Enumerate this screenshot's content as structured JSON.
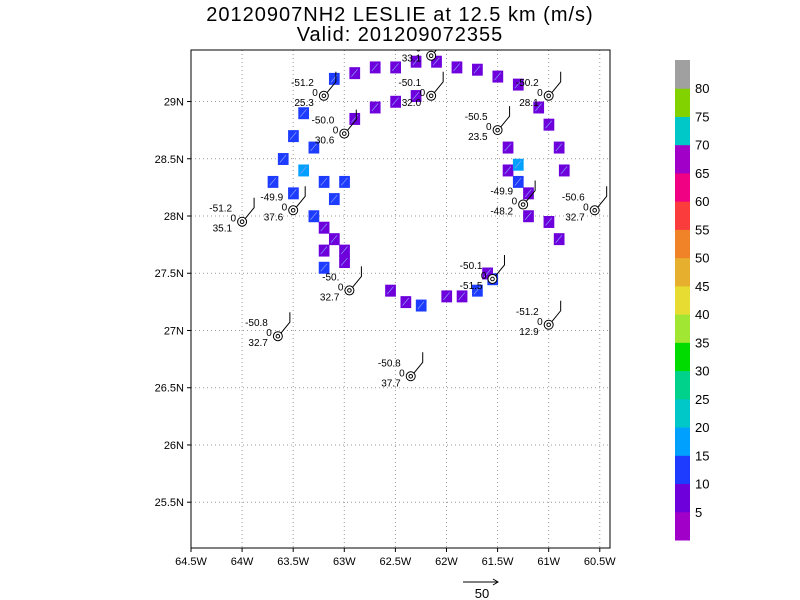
{
  "title_line1": "20120907NH2 LESLIE at 12.5 km (m/s)",
  "title_line2": "Valid: 201209072355",
  "chart_data": {
    "type": "heatmap",
    "xlim": [
      -64.5,
      -60.4
    ],
    "ylim": [
      25.1,
      29.45
    ],
    "x_ticks": [
      {
        "v": -64.5,
        "label": "64.5W"
      },
      {
        "v": -64.0,
        "label": "64W"
      },
      {
        "v": -63.5,
        "label": "63.5W"
      },
      {
        "v": -63.0,
        "label": "63W"
      },
      {
        "v": -62.5,
        "label": "62.5W"
      },
      {
        "v": -62.0,
        "label": "62W"
      },
      {
        "v": -61.5,
        "label": "61.5W"
      },
      {
        "v": -61.0,
        "label": "61W"
      },
      {
        "v": -60.5,
        "label": "60.5W"
      }
    ],
    "y_ticks": [
      {
        "v": 25.5,
        "label": "25.5N"
      },
      {
        "v": 26.0,
        "label": "26N"
      },
      {
        "v": 26.5,
        "label": "26.5N"
      },
      {
        "v": 27.0,
        "label": "27N"
      },
      {
        "v": 27.5,
        "label": "27.5N"
      },
      {
        "v": 28.0,
        "label": "28N"
      },
      {
        "v": 28.5,
        "label": "28.5N"
      },
      {
        "v": 29.0,
        "label": "29N"
      }
    ],
    "grid": true,
    "colorbar": {
      "labels": [
        "5",
        "10",
        "15",
        "20",
        "25",
        "30",
        "35",
        "40",
        "45",
        "50",
        "55",
        "60",
        "65",
        "70",
        "75",
        "80"
      ],
      "colors": [
        "#a000c8",
        "#6e00dc",
        "#1e3cff",
        "#00a0ff",
        "#00c8c8",
        "#00d28c",
        "#00dc00",
        "#a0e632",
        "#e6dc32",
        "#e6af2d",
        "#f08228",
        "#fa3c3c",
        "#f00082",
        "#a000c8",
        "#00c8c8",
        "#82d200",
        "#a0a0a0"
      ]
    },
    "wind_speed_cells": [
      {
        "lon": -62.3,
        "lat": 29.35,
        "v": 8
      },
      {
        "lon": -62.1,
        "lat": 29.35,
        "v": 7
      },
      {
        "lon": -62.5,
        "lat": 29.3,
        "v": 9
      },
      {
        "lon": -62.7,
        "lat": 29.3,
        "v": 8
      },
      {
        "lon": -62.9,
        "lat": 29.25,
        "v": 7
      },
      {
        "lon": -63.1,
        "lat": 29.2,
        "v": 10
      },
      {
        "lon": -61.9,
        "lat": 29.3,
        "v": 8
      },
      {
        "lon": -61.7,
        "lat": 29.28,
        "v": 7
      },
      {
        "lon": -61.5,
        "lat": 29.22,
        "v": 8
      },
      {
        "lon": -61.3,
        "lat": 29.15,
        "v": 7
      },
      {
        "lon": -62.5,
        "lat": 29.0,
        "v": 8
      },
      {
        "lon": -62.3,
        "lat": 29.05,
        "v": 9
      },
      {
        "lon": -62.7,
        "lat": 28.95,
        "v": 7
      },
      {
        "lon": -62.9,
        "lat": 28.85,
        "v": 8
      },
      {
        "lon": -63.4,
        "lat": 28.9,
        "v": 12
      },
      {
        "lon": -63.5,
        "lat": 28.7,
        "v": 14
      },
      {
        "lon": -63.3,
        "lat": 28.6,
        "v": 13
      },
      {
        "lon": -63.6,
        "lat": 28.5,
        "v": 12
      },
      {
        "lon": -63.4,
        "lat": 28.4,
        "v": 16
      },
      {
        "lon": -63.2,
        "lat": 28.3,
        "v": 14
      },
      {
        "lon": -63.0,
        "lat": 28.3,
        "v": 13
      },
      {
        "lon": -63.7,
        "lat": 28.3,
        "v": 12
      },
      {
        "lon": -63.5,
        "lat": 28.2,
        "v": 13
      },
      {
        "lon": -63.1,
        "lat": 28.15,
        "v": 12
      },
      {
        "lon": -63.3,
        "lat": 28.0,
        "v": 10
      },
      {
        "lon": -63.2,
        "lat": 27.9,
        "v": 9
      },
      {
        "lon": -63.1,
        "lat": 27.8,
        "v": 8
      },
      {
        "lon": -63.2,
        "lat": 27.7,
        "v": 9
      },
      {
        "lon": -63.0,
        "lat": 27.7,
        "v": 7
      },
      {
        "lon": -63.2,
        "lat": 27.55,
        "v": 12
      },
      {
        "lon": -63.0,
        "lat": 27.6,
        "v": 8
      },
      {
        "lon": -61.1,
        "lat": 28.95,
        "v": 7
      },
      {
        "lon": -61.0,
        "lat": 28.8,
        "v": 8
      },
      {
        "lon": -60.9,
        "lat": 28.6,
        "v": 7
      },
      {
        "lon": -60.85,
        "lat": 28.4,
        "v": 8
      },
      {
        "lon": -61.4,
        "lat": 28.6,
        "v": 7
      },
      {
        "lon": -61.4,
        "lat": 28.4,
        "v": 8
      },
      {
        "lon": -61.3,
        "lat": 28.45,
        "v": 16
      },
      {
        "lon": -61.3,
        "lat": 28.3,
        "v": 14
      },
      {
        "lon": -61.2,
        "lat": 28.2,
        "v": 9
      },
      {
        "lon": -61.2,
        "lat": 28.0,
        "v": 8
      },
      {
        "lon": -61.0,
        "lat": 27.95,
        "v": 7
      },
      {
        "lon": -60.9,
        "lat": 27.8,
        "v": 8
      },
      {
        "lon": -62.55,
        "lat": 27.35,
        "v": 8
      },
      {
        "lon": -62.4,
        "lat": 27.25,
        "v": 9
      },
      {
        "lon": -62.25,
        "lat": 27.22,
        "v": 10
      },
      {
        "lon": -62.0,
        "lat": 27.3,
        "v": 8
      },
      {
        "lon": -61.85,
        "lat": 27.3,
        "v": 9
      },
      {
        "lon": -61.7,
        "lat": 27.35,
        "v": 12
      },
      {
        "lon": -61.55,
        "lat": 27.45,
        "v": 13
      },
      {
        "lon": -61.6,
        "lat": 27.5,
        "v": 7
      }
    ],
    "dropsondes": [
      {
        "lon": -62.15,
        "lat": 29.4,
        "labels": [
          "0",
          "33.1"
        ]
      },
      {
        "lon": -63.2,
        "lat": 29.05,
        "labels": [
          "-51.2",
          "0",
          "25.3"
        ]
      },
      {
        "lon": -62.15,
        "lat": 29.05,
        "labels": [
          "-50.1",
          "0",
          "32.0"
        ]
      },
      {
        "lon": -61.0,
        "lat": 29.05,
        "labels": [
          "-50.2",
          "0",
          "28.1"
        ]
      },
      {
        "lon": -63.0,
        "lat": 28.72,
        "labels": [
          "-50.0",
          "0",
          "30.6"
        ]
      },
      {
        "lon": -61.5,
        "lat": 28.75,
        "labels": [
          "-50.5",
          "0",
          "23.5"
        ]
      },
      {
        "lon": -64.0,
        "lat": 27.95,
        "labels": [
          "-51.2",
          "0",
          "35.1"
        ]
      },
      {
        "lon": -63.5,
        "lat": 28.05,
        "labels": [
          "-49.9",
          "0",
          "37.6"
        ]
      },
      {
        "lon": -61.25,
        "lat": 28.1,
        "labels": [
          "-49.9",
          "0",
          "-48.2"
        ]
      },
      {
        "lon": -60.55,
        "lat": 28.05,
        "labels": [
          "-50.6",
          "0",
          "32.7"
        ]
      },
      {
        "lon": -61.55,
        "lat": 27.45,
        "labels": [
          "-50.1",
          "0",
          "-51.5"
        ]
      },
      {
        "lon": -62.95,
        "lat": 27.35,
        "labels": [
          "-50.",
          "0",
          "32.7"
        ]
      },
      {
        "lon": -61.0,
        "lat": 27.05,
        "labels": [
          "-51.2",
          "0",
          "12.9"
        ]
      },
      {
        "lon": -63.65,
        "lat": 26.95,
        "labels": [
          "-50.8",
          "0",
          "32.7"
        ]
      },
      {
        "lon": -62.35,
        "lat": 26.6,
        "labels": [
          "-50.8",
          "0",
          "37.7"
        ]
      }
    ],
    "reference_vector": "50"
  }
}
